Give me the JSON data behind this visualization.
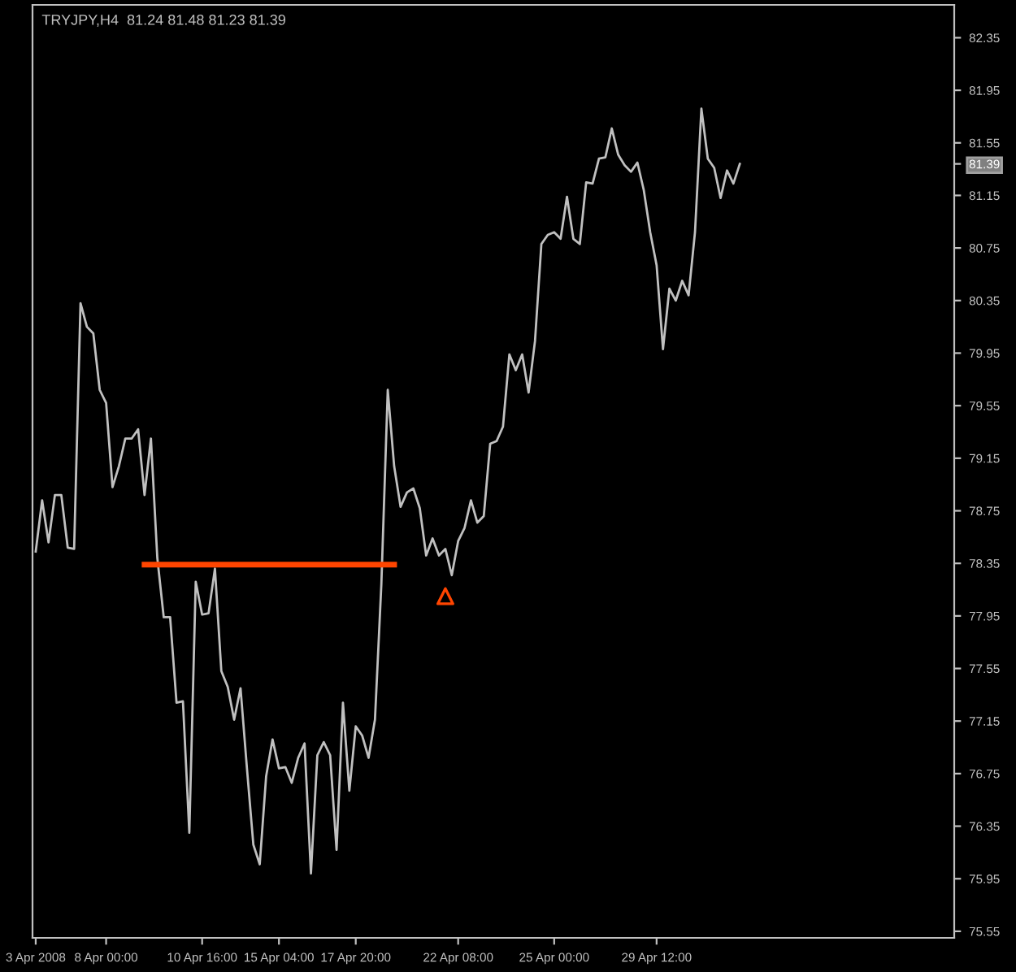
{
  "chart_data": {
    "type": "line",
    "title": "TRYJPY,H4  81.24 81.48 81.23 81.39",
    "categories": [
      "3 Apr 2008",
      null,
      null,
      null,
      null,
      null,
      null,
      null,
      null,
      null,
      null,
      "8 Apr 00:00",
      null,
      null,
      null,
      null,
      null,
      null,
      null,
      null,
      null,
      null,
      null,
      null,
      null,
      null,
      "10 Apr 16:00",
      null,
      null,
      null,
      null,
      null,
      null,
      null,
      null,
      null,
      null,
      null,
      "15 Apr 04:00",
      null,
      null,
      null,
      null,
      null,
      null,
      null,
      null,
      null,
      null,
      null,
      "17 Apr 20:00",
      null,
      null,
      null,
      null,
      null,
      null,
      null,
      null,
      null,
      null,
      null,
      null,
      null,
      null,
      null,
      "22 Apr 08:00",
      null,
      null,
      null,
      null,
      null,
      null,
      null,
      null,
      null,
      null,
      null,
      null,
      null,
      null,
      "25 Apr 00:00",
      null,
      null,
      null,
      null,
      null,
      null,
      null,
      null,
      null,
      null,
      null,
      null,
      null,
      null,
      null,
      "29 Apr 12:00",
      null,
      null,
      null,
      null,
      null,
      null,
      null,
      null,
      null,
      null,
      null,
      null,
      null,
      null,
      null,
      null,
      null,
      null,
      null,
      null,
      null,
      null,
      null,
      null,
      null,
      null,
      null,
      null,
      null,
      null,
      null,
      null,
      null,
      null,
      null,
      null,
      null,
      null,
      null,
      null,
      null,
      null,
      null,
      null,
      null,
      null
    ],
    "ylim": [
      75.5,
      82.6
    ],
    "yticks": [
      75.55,
      75.95,
      76.35,
      76.75,
      77.15,
      77.55,
      77.95,
      78.35,
      78.75,
      79.15,
      79.55,
      79.95,
      80.35,
      80.75,
      81.15,
      {
        "value": 81.39,
        "label": "81.39"
      },
      81.55,
      81.95,
      82.35
    ],
    "series": [
      {
        "color": "#c0c0c0",
        "values": [
          78.44,
          78.83,
          78.51,
          78.87,
          78.87,
          78.47,
          78.46,
          80.33,
          80.15,
          80.1,
          79.67,
          79.57,
          78.93,
          79.09,
          79.3,
          79.3,
          79.37,
          78.87,
          79.3,
          78.39,
          77.94,
          77.94,
          77.29,
          77.3,
          76.3,
          78.21,
          77.96,
          77.97,
          78.31,
          77.53,
          77.41,
          77.16,
          77.4,
          76.79,
          76.21,
          76.06,
          76.73,
          77.01,
          76.79,
          76.8,
          76.68,
          76.87,
          76.98,
          75.99,
          76.89,
          76.99,
          76.89,
          76.17,
          77.29,
          76.62,
          77.11,
          77.04,
          76.87,
          77.16,
          78.19,
          79.67,
          79.09,
          78.78,
          78.89,
          78.92,
          78.77,
          78.41,
          78.54,
          78.41,
          78.46,
          78.26,
          78.52,
          78.62,
          78.83,
          78.66,
          78.71,
          79.26,
          79.28,
          79.39,
          79.94,
          79.82,
          79.94,
          79.65,
          80.04,
          80.78,
          80.85,
          80.87,
          80.82,
          81.14,
          80.82,
          80.78,
          81.25,
          81.24,
          81.43,
          81.44,
          81.66,
          81.46,
          81.38,
          81.33,
          81.4,
          81.19,
          80.87,
          80.62,
          79.98,
          80.44,
          80.35,
          80.5,
          80.39,
          80.87,
          81.81,
          81.43,
          81.36,
          81.13,
          81.34,
          81.24,
          81.39,
          null,
          null,
          null,
          null,
          null,
          null,
          null,
          null,
          null,
          null,
          null,
          null,
          null,
          null,
          null,
          null,
          null,
          null,
          null,
          null,
          null,
          null,
          null,
          null,
          null,
          null,
          null,
          null,
          null,
          null,
          null,
          null,
          null
        ]
      },
      {
        "type": "line",
        "color": "#ff4500",
        "values": [
          null,
          null,
          null,
          null,
          null,
          null,
          null,
          null,
          null,
          null,
          null,
          null,
          null,
          null,
          null,
          null,
          null,
          78.34,
          78.34,
          78.34,
          78.34,
          78.34,
          78.34,
          78.34,
          78.34,
          78.34,
          78.34,
          78.34,
          78.34,
          78.34,
          78.34,
          78.34,
          78.34,
          78.34,
          78.34,
          78.34,
          78.34,
          78.34,
          78.34,
          78.34,
          78.34,
          78.34,
          78.34,
          78.34,
          78.34,
          78.34,
          78.34,
          78.34,
          78.34,
          78.34,
          78.34,
          78.34,
          78.34,
          78.34,
          78.34,
          78.34,
          78.34,
          null,
          null,
          null,
          null,
          null,
          null,
          null,
          null,
          null,
          null,
          null,
          null,
          null,
          null,
          null,
          null,
          null,
          null,
          null,
          null,
          null,
          null,
          null,
          null,
          null,
          null,
          null,
          null,
          null,
          null,
          null,
          null,
          null,
          null,
          null,
          null,
          null,
          null,
          null,
          null,
          null,
          null,
          null,
          null,
          null,
          null,
          null,
          null,
          null,
          null,
          null,
          null,
          null,
          null,
          null,
          null,
          null,
          null,
          null,
          null,
          null,
          null,
          null,
          null,
          null,
          null,
          null,
          null,
          null,
          null,
          null,
          null,
          null,
          null,
          null,
          null,
          null,
          null,
          null,
          null,
          null,
          null,
          null,
          null,
          null,
          null,
          null
        ]
      },
      {
        "type": "scatter",
        "color": "#ff4500",
        "marker": "triangle",
        "values": [
          null,
          null,
          null,
          null,
          null,
          null,
          null,
          null,
          null,
          null,
          null,
          null,
          null,
          null,
          null,
          null,
          null,
          null,
          null,
          null,
          null,
          null,
          null,
          null,
          null,
          null,
          null,
          null,
          null,
          null,
          null,
          null,
          null,
          null,
          null,
          null,
          null,
          null,
          null,
          null,
          null,
          null,
          null,
          null,
          null,
          null,
          null,
          null,
          null,
          null,
          null,
          null,
          null,
          null,
          null,
          null,
          null,
          null,
          null,
          null,
          null,
          null,
          null,
          null,
          78.1,
          null,
          null,
          null,
          null,
          null,
          null,
          null,
          null,
          null,
          null,
          null,
          null,
          null,
          null,
          null,
          null,
          null,
          null,
          null,
          null,
          null,
          null,
          null,
          null,
          null,
          null,
          null,
          null,
          null,
          null,
          null,
          null,
          null,
          null,
          null,
          null,
          null,
          null,
          null,
          null,
          null,
          null,
          null,
          null,
          null,
          null,
          null,
          null,
          null,
          null,
          null,
          null,
          null,
          null,
          null,
          null,
          null,
          null,
          null,
          null,
          null,
          null,
          null,
          null,
          null,
          null,
          null,
          null,
          null,
          null,
          null,
          null,
          null,
          null,
          null,
          null,
          null,
          null,
          null
        ]
      }
    ]
  }
}
